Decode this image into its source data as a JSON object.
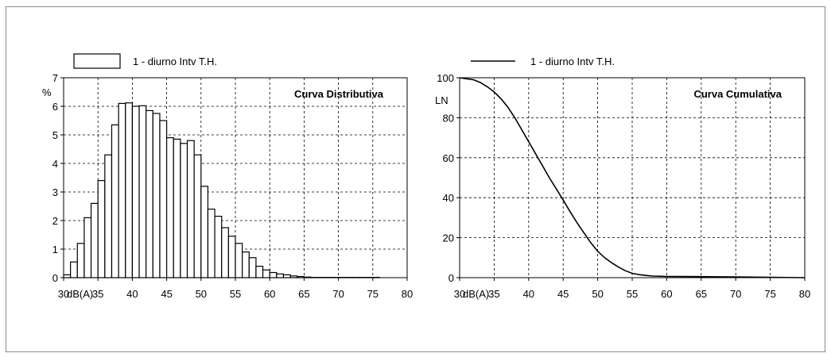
{
  "chart_data": [
    {
      "type": "bar",
      "title": "Curva Distributiva",
      "ylabel": "%",
      "xlabel": "dB(A)",
      "legend": {
        "label": "1 - diurno Intv T.H.",
        "position": "top"
      },
      "xlim": [
        30,
        80
      ],
      "ylim": [
        0,
        7
      ],
      "grid": true,
      "x_ticks": [
        "30",
        "35",
        "40",
        "45",
        "50",
        "55",
        "60",
        "65",
        "70",
        "75",
        "80"
      ],
      "y_ticks": [
        "0",
        "1",
        "2",
        "3",
        "4",
        "5",
        "6",
        "7"
      ],
      "bin_width": 1,
      "x": [
        30,
        31,
        32,
        33,
        34,
        35,
        36,
        37,
        38,
        39,
        40,
        41,
        42,
        43,
        44,
        45,
        46,
        47,
        48,
        49,
        50,
        51,
        52,
        53,
        54,
        55,
        56,
        57,
        58,
        59,
        60,
        61,
        62,
        63,
        64,
        65,
        66,
        67,
        68,
        69,
        70,
        71,
        72,
        73,
        74,
        75,
        76,
        77,
        78,
        79
      ],
      "values": [
        0.1,
        0.55,
        1.2,
        2.1,
        2.6,
        3.4,
        4.3,
        5.35,
        6.1,
        6.12,
        6.0,
        6.02,
        5.85,
        5.75,
        5.5,
        4.9,
        4.85,
        4.7,
        4.8,
        4.3,
        3.2,
        2.4,
        2.15,
        1.75,
        1.45,
        1.2,
        0.9,
        0.7,
        0.4,
        0.27,
        0.18,
        0.13,
        0.1,
        0.06,
        0.04,
        0.02,
        0.01,
        0.01,
        0.01,
        0.01,
        0.01,
        0.01,
        0.01,
        0.01,
        0.01,
        0.01,
        0.0,
        0.0,
        0.0,
        0.0
      ]
    },
    {
      "type": "line",
      "title": "Curva Cumulativa",
      "ylabel": "LN",
      "xlabel": "dB(A)",
      "legend": {
        "label": "1 - diurno Intv T.H.",
        "position": "top"
      },
      "xlim": [
        30,
        80
      ],
      "ylim": [
        0,
        100
      ],
      "grid": true,
      "x_ticks": [
        "30",
        "35",
        "40",
        "45",
        "50",
        "55",
        "60",
        "65",
        "70",
        "75",
        "80"
      ],
      "y_ticks": [
        "0",
        "20",
        "40",
        "60",
        "80",
        "100"
      ],
      "series": [
        {
          "x": [
            30,
            31,
            32,
            33,
            34,
            35,
            36,
            37,
            38,
            39,
            40,
            41,
            42,
            43,
            44,
            45,
            46,
            47,
            48,
            49,
            50,
            51,
            52,
            53,
            54,
            55,
            56,
            57,
            58,
            59,
            60,
            62,
            65,
            70,
            75,
            80
          ],
          "values": [
            100,
            99.5,
            99,
            97.6,
            95.5,
            92.9,
            89.5,
            85.2,
            80,
            74,
            68,
            62,
            56,
            50,
            44.5,
            38.8,
            33,
            27.5,
            22.5,
            17.5,
            13.2,
            10,
            7.5,
            5.3,
            3.5,
            2.2,
            1.5,
            1.1,
            0.8,
            0.7,
            0.6,
            0.55,
            0.5,
            0.4,
            0.2,
            0.0
          ]
        }
      ]
    }
  ]
}
